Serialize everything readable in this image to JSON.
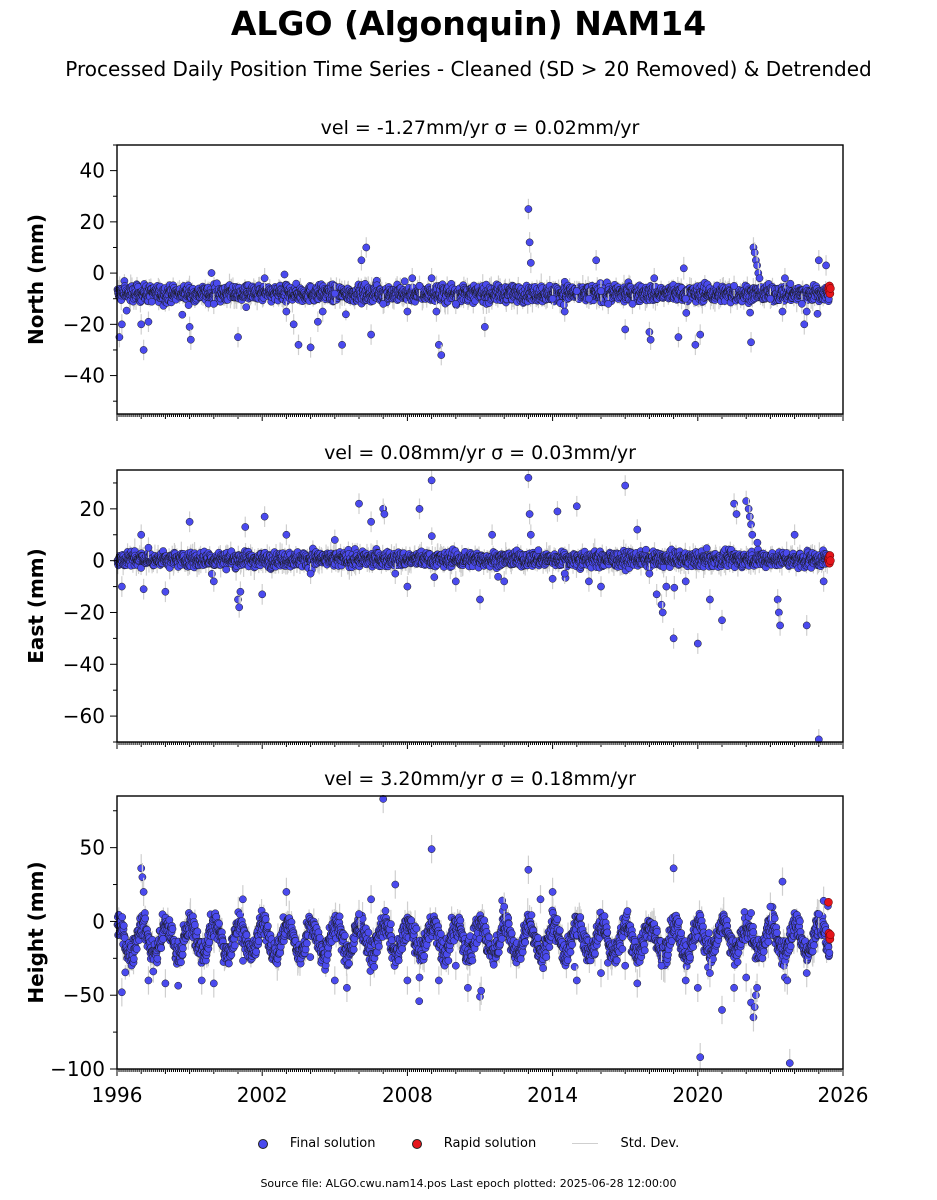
{
  "header": {
    "title": "ALGO (Algonquin) NAM14",
    "subtitle": "Processed Daily Position Time Series - Cleaned (SD > 20 Removed) & Detrended"
  },
  "chart_data": [
    {
      "type": "scatter",
      "title": "vel = -1.27mm/yr   σ = 0.02mm/yr",
      "ylabel": "North (mm)",
      "xlabel": "",
      "xlim": [
        1996,
        2026
      ],
      "ylim": [
        -55,
        50
      ],
      "yticks": [
        -40,
        -20,
        0,
        20,
        40
      ],
      "xticks": [
        1996,
        2002,
        2008,
        2014,
        2020,
        2026
      ],
      "show_xtick_labels": false,
      "series_final": {
        "baseline": -8,
        "noise": 2.2,
        "annual_amp": 0,
        "rate": 0
      },
      "outliers": [
        [
          1996.1,
          -25
        ],
        [
          1996.2,
          -20
        ],
        [
          1997.0,
          -20
        ],
        [
          1997.1,
          -30
        ],
        [
          1997.3,
          -19
        ],
        [
          1999.0,
          -21
        ],
        [
          1999.05,
          -26
        ],
        [
          2000.0,
          -12
        ],
        [
          2001.0,
          -25
        ],
        [
          2002.1,
          -2
        ],
        [
          2003.0,
          -15
        ],
        [
          2003.3,
          -20
        ],
        [
          2003.5,
          -28
        ],
        [
          2004.0,
          -29
        ],
        [
          2004.3,
          -19
        ],
        [
          2004.5,
          -15
        ],
        [
          2005.0,
          -8
        ],
        [
          2005.3,
          -28
        ],
        [
          2006.1,
          5
        ],
        [
          2006.3,
          10
        ],
        [
          2006.5,
          -24
        ],
        [
          2007.0,
          -12
        ],
        [
          2008.0,
          -15
        ],
        [
          2008.2,
          -2
        ],
        [
          2008.5,
          -5
        ],
        [
          2009.0,
          -2
        ],
        [
          2009.2,
          -15
        ],
        [
          2009.3,
          -28
        ],
        [
          2009.4,
          -32
        ],
        [
          2010.0,
          -12
        ],
        [
          2011.2,
          -21
        ],
        [
          2013.0,
          25
        ],
        [
          2013.05,
          12
        ],
        [
          2013.1,
          4
        ],
        [
          2014.0,
          -10
        ],
        [
          2014.5,
          -15
        ],
        [
          2015.0,
          -7
        ],
        [
          2015.5,
          -10
        ],
        [
          2015.8,
          5
        ],
        [
          2016.0,
          -7
        ],
        [
          2016.3,
          -12
        ],
        [
          2017.0,
          -22
        ],
        [
          2017.3,
          -12
        ],
        [
          2018.0,
          -23
        ],
        [
          2018.05,
          -26
        ],
        [
          2018.2,
          -2
        ],
        [
          2019.2,
          -25
        ],
        [
          2019.5,
          -10
        ],
        [
          2019.9,
          -28
        ],
        [
          2020.1,
          -24
        ],
        [
          2021.5,
          -5
        ],
        [
          2022.2,
          -27
        ],
        [
          2022.3,
          10
        ],
        [
          2022.35,
          8
        ],
        [
          2022.4,
          5
        ],
        [
          2022.45,
          3
        ],
        [
          2022.5,
          0
        ],
        [
          2022.55,
          -2
        ],
        [
          2023.0,
          -10
        ],
        [
          2023.5,
          -15
        ],
        [
          2023.6,
          -2
        ],
        [
          2024.3,
          -12
        ],
        [
          2024.4,
          -20
        ],
        [
          2024.5,
          -15
        ],
        [
          2025.0,
          5
        ],
        [
          2025.3,
          3
        ]
      ],
      "rapid_points": [
        [
          2025.4,
          -6
        ],
        [
          2025.42,
          -7
        ],
        [
          2025.44,
          -5
        ],
        [
          2025.46,
          -8
        ],
        [
          2025.48,
          -6
        ]
      ],
      "legend": [
        "Final solution",
        "Rapid solution",
        "Std. Dev."
      ]
    },
    {
      "type": "scatter",
      "title": "vel = 0.08mm/yr   σ = 0.03mm/yr",
      "ylabel": "East (mm)",
      "xlabel": "",
      "xlim": [
        1996,
        2026
      ],
      "ylim": [
        -70,
        35
      ],
      "yticks": [
        -60,
        -40,
        -20,
        0,
        20
      ],
      "xticks": [
        1996,
        2002,
        2008,
        2014,
        2020,
        2026
      ],
      "show_xtick_labels": false,
      "series_final": {
        "baseline": 0.5,
        "noise": 2.0,
        "annual_amp": 0,
        "rate": 0
      },
      "outliers": [
        [
          1996.2,
          -10
        ],
        [
          1997.0,
          10
        ],
        [
          1997.1,
          -11
        ],
        [
          1997.3,
          5
        ],
        [
          1998.0,
          -12
        ],
        [
          1999.0,
          15
        ],
        [
          2000.0,
          -8
        ],
        [
          2001.0,
          -15
        ],
        [
          2001.05,
          -18
        ],
        [
          2001.1,
          -12
        ],
        [
          2001.3,
          13
        ],
        [
          2002.0,
          -13
        ],
        [
          2002.1,
          17
        ],
        [
          2003.0,
          10
        ],
        [
          2004.0,
          -5
        ],
        [
          2005.0,
          8
        ],
        [
          2006.0,
          22
        ],
        [
          2006.5,
          15
        ],
        [
          2007.0,
          20
        ],
        [
          2007.05,
          18
        ],
        [
          2007.5,
          -5
        ],
        [
          2008.0,
          -10
        ],
        [
          2008.5,
          20
        ],
        [
          2009.0,
          31
        ],
        [
          2010.0,
          -8
        ],
        [
          2011.0,
          -15
        ],
        [
          2011.5,
          10
        ],
        [
          2012.0,
          -8
        ],
        [
          2013.0,
          32
        ],
        [
          2013.05,
          18
        ],
        [
          2013.1,
          10
        ],
        [
          2014.0,
          -7
        ],
        [
          2014.2,
          19
        ],
        [
          2014.5,
          -5
        ],
        [
          2015.0,
          21
        ],
        [
          2015.5,
          -8
        ],
        [
          2016.0,
          -10
        ],
        [
          2017.0,
          29
        ],
        [
          2017.5,
          12
        ],
        [
          2018.0,
          -5
        ],
        [
          2018.3,
          -13
        ],
        [
          2018.5,
          -17
        ],
        [
          2018.55,
          -20
        ],
        [
          2018.7,
          -10
        ],
        [
          2019.0,
          -30
        ],
        [
          2019.5,
          -8
        ],
        [
          2020.0,
          -32
        ],
        [
          2020.5,
          -15
        ],
        [
          2021.0,
          -23
        ],
        [
          2021.5,
          22
        ],
        [
          2021.6,
          18
        ],
        [
          2022.0,
          23
        ],
        [
          2022.1,
          20
        ],
        [
          2022.15,
          17
        ],
        [
          2022.2,
          14
        ],
        [
          2022.25,
          10
        ],
        [
          2023.3,
          -15
        ],
        [
          2023.35,
          -20
        ],
        [
          2023.4,
          -25
        ],
        [
          2024.0,
          10
        ],
        [
          2024.5,
          -25
        ],
        [
          2025.0,
          -69
        ],
        [
          2025.2,
          -8
        ]
      ],
      "rapid_points": [
        [
          2025.4,
          0
        ],
        [
          2025.42,
          1
        ],
        [
          2025.44,
          -1
        ],
        [
          2025.46,
          2
        ],
        [
          2025.48,
          0
        ]
      ],
      "legend": [
        "Final solution",
        "Rapid solution",
        "Std. Dev."
      ]
    },
    {
      "type": "scatter",
      "title": "vel = 3.20mm/yr   σ = 0.18mm/yr",
      "ylabel": "Height (mm)",
      "xlabel": "",
      "xlim": [
        1996,
        2026
      ],
      "ylim": [
        -100,
        85
      ],
      "yticks": [
        -100,
        -50,
        0,
        50
      ],
      "xticks": [
        1996,
        2002,
        2008,
        2014,
        2020,
        2026
      ],
      "show_xtick_labels": true,
      "series_final": {
        "baseline": -12,
        "noise": 6,
        "annual_amp": 10,
        "rate": 0
      },
      "outliers": [
        [
          1996.2,
          -48
        ],
        [
          1997.0,
          36
        ],
        [
          1997.05,
          30
        ],
        [
          1997.1,
          20
        ],
        [
          1997.3,
          -40
        ],
        [
          1998.0,
          -42
        ],
        [
          1999.5,
          -40
        ],
        [
          2000.0,
          -42
        ],
        [
          2001.2,
          15
        ],
        [
          2003.0,
          20
        ],
        [
          2005.0,
          -40
        ],
        [
          2005.5,
          -45
        ],
        [
          2006.0,
          5
        ],
        [
          2006.5,
          15
        ],
        [
          2007.0,
          83
        ],
        [
          2007.5,
          25
        ],
        [
          2008.0,
          -40
        ],
        [
          2008.5,
          -38
        ],
        [
          2009.0,
          49
        ],
        [
          2009.3,
          -40
        ],
        [
          2010.0,
          -30
        ],
        [
          2010.5,
          -45
        ],
        [
          2011.0,
          -51
        ],
        [
          2011.05,
          -47
        ],
        [
          2012.0,
          10
        ],
        [
          2013.0,
          35
        ],
        [
          2013.5,
          15
        ],
        [
          2014.0,
          20
        ],
        [
          2015.0,
          -40
        ],
        [
          2016.0,
          -35
        ],
        [
          2017.0,
          -30
        ],
        [
          2017.5,
          -42
        ],
        [
          2018.5,
          -30
        ],
        [
          2019.0,
          36
        ],
        [
          2019.5,
          -40
        ],
        [
          2020.0,
          -45
        ],
        [
          2020.1,
          -92
        ],
        [
          2020.5,
          -35
        ],
        [
          2021.0,
          -60
        ],
        [
          2021.5,
          -45
        ],
        [
          2022.0,
          -38
        ],
        [
          2022.2,
          -55
        ],
        [
          2022.3,
          -65
        ],
        [
          2022.35,
          -58
        ],
        [
          2022.4,
          -50
        ],
        [
          2022.45,
          -45
        ],
        [
          2023.0,
          10
        ],
        [
          2023.5,
          27
        ],
        [
          2023.6,
          -38
        ],
        [
          2023.7,
          -40
        ],
        [
          2023.8,
          -96
        ],
        [
          2024.5,
          -35
        ],
        [
          2025.0,
          5
        ],
        [
          2025.2,
          14
        ]
      ],
      "rapid_points": [
        [
          2025.4,
          13
        ],
        [
          2025.42,
          -8
        ],
        [
          2025.44,
          -10
        ],
        [
          2025.46,
          -12
        ],
        [
          2025.48,
          -9
        ]
      ],
      "legend": [
        "Final solution",
        "Rapid solution",
        "Std. Dev."
      ]
    }
  ],
  "legend": {
    "final": "Final solution",
    "rapid": "Rapid solution",
    "stddev": "Std. Dev."
  },
  "footer": {
    "source": "Source file: ALGO.cwu.nam14.pos  Last epoch plotted: 2025-06-28 12:00:00"
  },
  "colors": {
    "final": "#4a4aee",
    "final_edge": "#1a1a1a",
    "rapid": "#e4151b",
    "stddev": "#cfcfcf"
  }
}
